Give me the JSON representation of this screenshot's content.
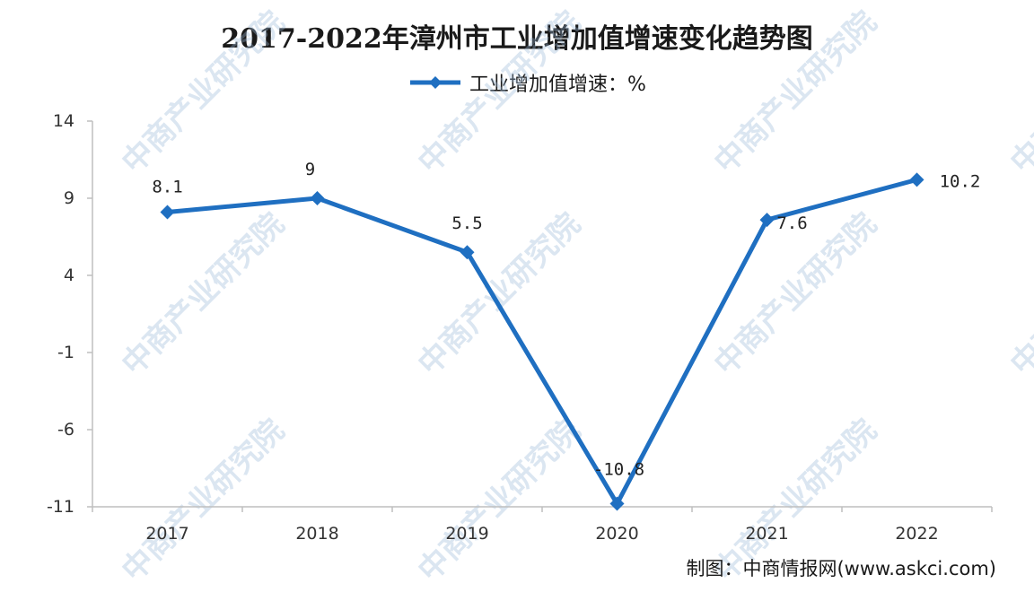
{
  "chart_data": {
    "type": "line",
    "title": "2017-2022年漳州市工业增加值增速变化趋势图",
    "categories": [
      "2017",
      "2018",
      "2019",
      "2020",
      "2021",
      "2022"
    ],
    "series": [
      {
        "name": "工业增加值增速：%",
        "values": [
          8.1,
          9,
          5.5,
          -10.8,
          7.6,
          10.2
        ],
        "color": "#1f6fc1"
      }
    ],
    "data_labels": [
      "8.1",
      "9",
      "5.5",
      "-10.8",
      "7.6",
      "10.2"
    ],
    "yticks": [
      14,
      9,
      4,
      -1,
      -6,
      -11
    ],
    "ylim": [
      -11,
      14
    ],
    "grid": false,
    "legend_position": "top"
  },
  "legend": {
    "label": "工业增加值增速：%"
  },
  "source": "制图：中商情报网(www.askci.com)",
  "watermark": "中商产业研究院"
}
